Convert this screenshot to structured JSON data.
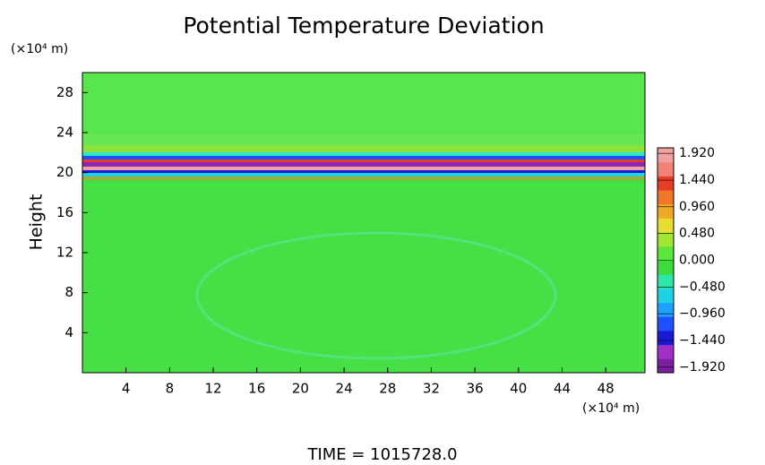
{
  "chart_data": {
    "type": "contour",
    "title": "Potential Temperature Deviation",
    "x_unit": "(×10⁴ m)",
    "y_unit": "(×10⁴ m)",
    "y_label": "Height",
    "annotation": "TIME = 1015728.0",
    "xlim": [
      0,
      51.6
    ],
    "ylim": [
      0,
      30
    ],
    "xticks": [
      4,
      8,
      12,
      16,
      20,
      24,
      28,
      32,
      36,
      40,
      44,
      48
    ],
    "yticks": [
      4,
      8,
      12,
      16,
      20,
      24,
      28
    ],
    "clim": [
      -2.02,
      2.02
    ],
    "colorbar_ticks": [
      {
        "value": 1.92,
        "label": "1.920"
      },
      {
        "value": 1.44,
        "label": "1.440"
      },
      {
        "value": 0.96,
        "label": "0.960"
      },
      {
        "value": 0.48,
        "label": "0.480"
      },
      {
        "value": 0,
        "label": "0.000"
      },
      {
        "value": -0.48,
        "label": "−0.480"
      },
      {
        "value": -0.96,
        "label": "−0.960"
      },
      {
        "value": -1.44,
        "label": "−1.440"
      },
      {
        "value": -1.92,
        "label": "−1.920"
      }
    ],
    "colormap": [
      "#7a1fa0",
      "#a030c8",
      "#1a1ad2",
      "#1e50ff",
      "#1ea0ff",
      "#1ed2e6",
      "#2ee6aa",
      "#3cdc3c",
      "#5ae63c",
      "#a0e632",
      "#e6dc32",
      "#f0aa28",
      "#f07828",
      "#e63c28",
      "#f08278",
      "#f0a0a0"
    ]
  }
}
